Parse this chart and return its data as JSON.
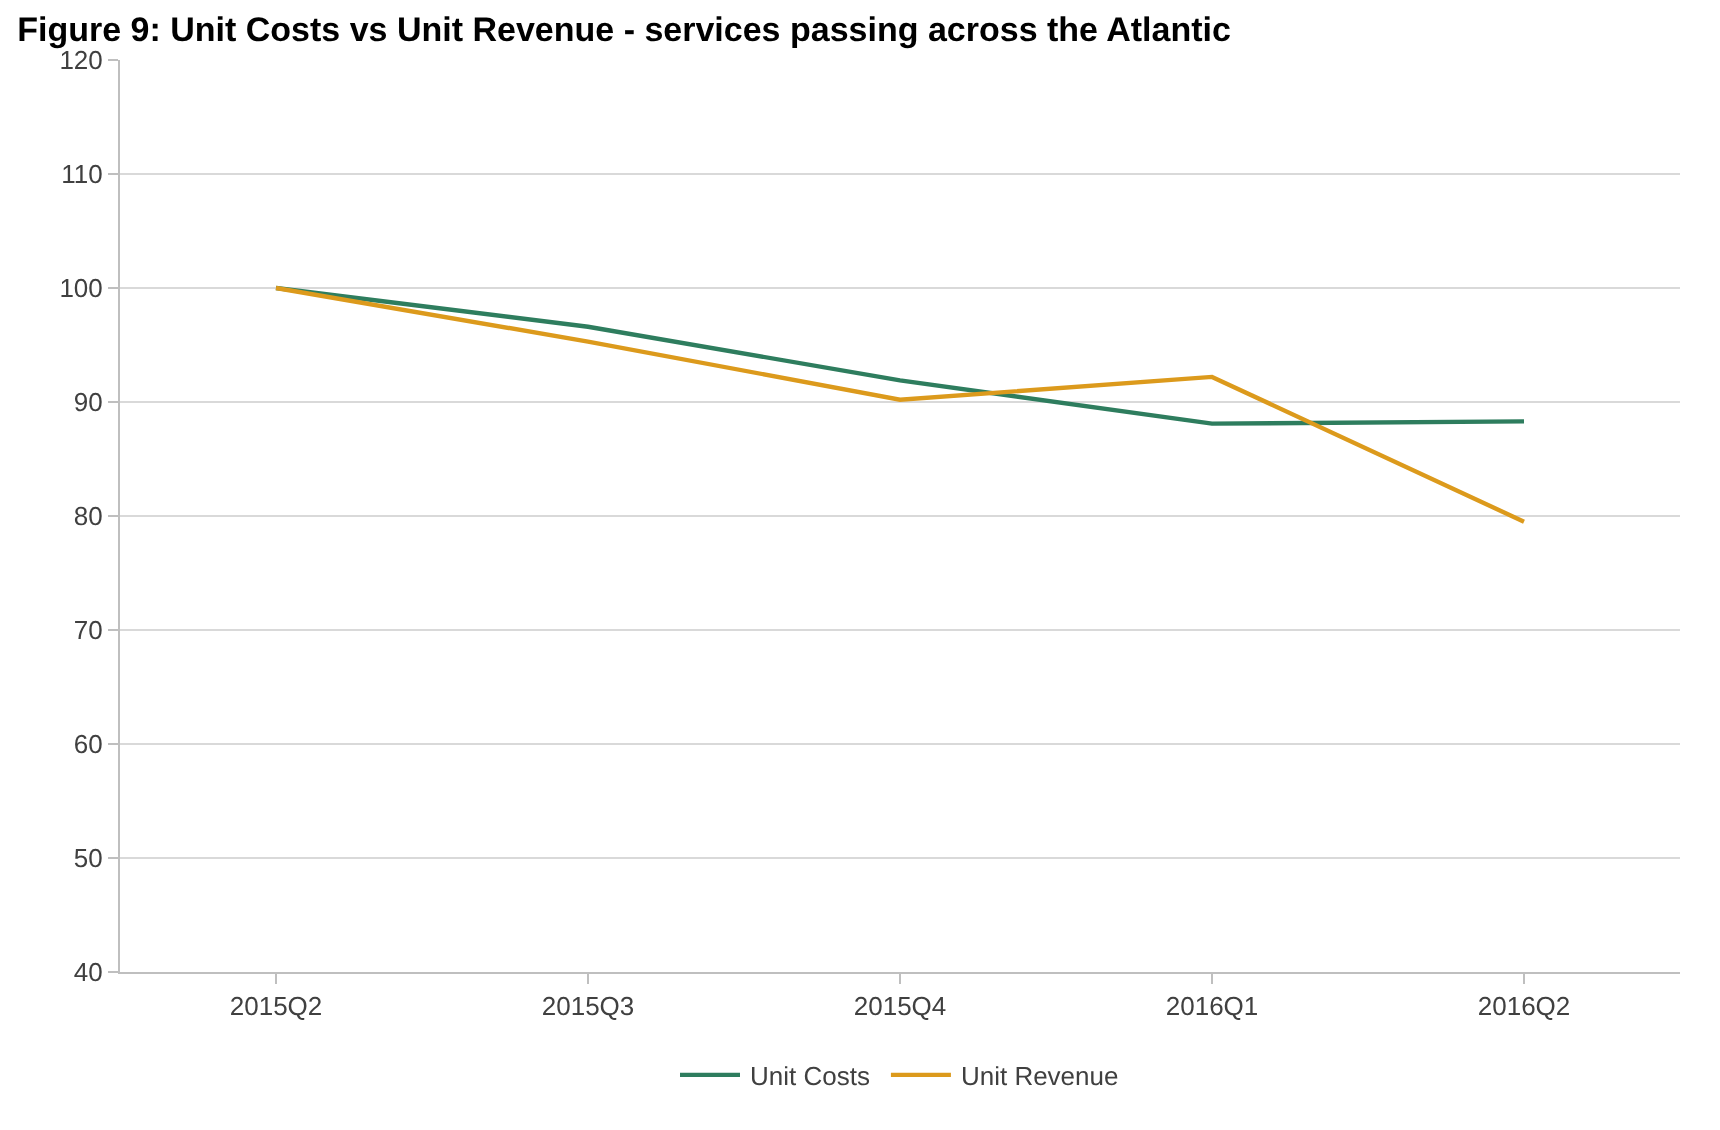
{
  "chart_data": {
    "type": "line",
    "title": "Figure 9: Unit Costs vs Unit Revenue - services passing across the Atlantic",
    "categories": [
      "2015Q2",
      "2015Q3",
      "2015Q4",
      "2016Q1",
      "2016Q2"
    ],
    "series": [
      {
        "name": "Unit Costs",
        "color": "#2e7d5e",
        "values": [
          100,
          96.6,
          91.9,
          88.1,
          88.3
        ]
      },
      {
        "name": "Unit Revenue",
        "color": "#dc9a1c",
        "values": [
          100,
          95.3,
          90.2,
          92.2,
          79.5
        ]
      }
    ],
    "ylim": [
      40,
      120
    ],
    "yticks": [
      40,
      50,
      60,
      70,
      80,
      90,
      100,
      110,
      120
    ],
    "grid": "y",
    "legend": "bottom",
    "marker": "none",
    "line_style": "solid"
  }
}
